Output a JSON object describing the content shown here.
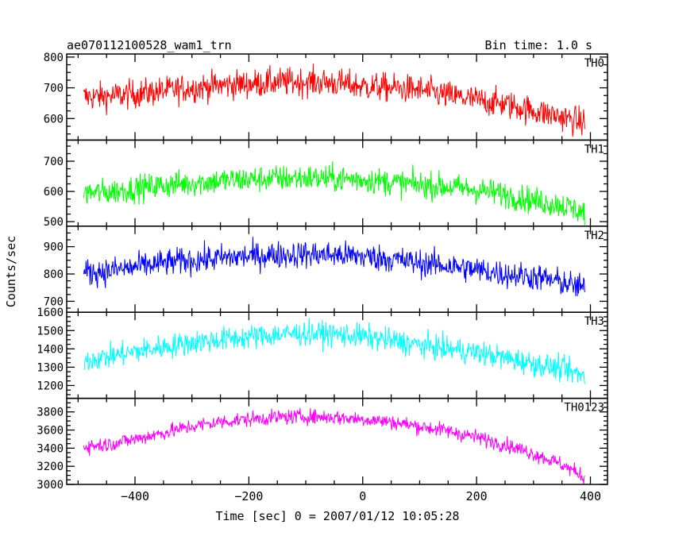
{
  "chart_data": {
    "type": "line",
    "title": "ae070112100528_wam1_trn",
    "subtitle": "Bin time: 1.0 s",
    "xlabel": "Time [sec] 0 = 2007/01/12 10:05:28",
    "ylabel": "Counts/sec",
    "xlim": [
      -520,
      430
    ],
    "xticks": [
      -400,
      -200,
      0,
      200,
      400
    ],
    "panels": [
      {
        "name": "TH0",
        "color": "#ff0000",
        "ylim": [
          530,
          810
        ],
        "yticks": [
          600,
          700,
          800
        ],
        "x": [
          -490,
          -450,
          -400,
          -350,
          -300,
          -250,
          -200,
          -150,
          -100,
          -50,
          0,
          50,
          100,
          150,
          200,
          250,
          300,
          350,
          390
        ],
        "mean": [
          670,
          672,
          680,
          690,
          700,
          708,
          713,
          718,
          720,
          716,
          705,
          700,
          693,
          675,
          660,
          647,
          625,
          605,
          585
        ],
        "spread": 42
      },
      {
        "name": "TH1",
        "color": "#00ff00",
        "ylim": [
          485,
          770
        ],
        "yticks": [
          500,
          600,
          700
        ],
        "x": [
          -490,
          -450,
          -400,
          -350,
          -300,
          -250,
          -200,
          -150,
          -100,
          -50,
          0,
          50,
          100,
          150,
          200,
          250,
          300,
          350,
          390
        ],
        "mean": [
          595,
          597,
          610,
          620,
          628,
          635,
          640,
          643,
          645,
          642,
          640,
          630,
          622,
          615,
          605,
          590,
          570,
          555,
          530
        ],
        "spread": 40
      },
      {
        "name": "TH2",
        "color": "#0000ff",
        "ylim": [
          660,
          975
        ],
        "yticks": [
          700,
          800,
          900
        ],
        "x": [
          -490,
          -450,
          -400,
          -350,
          -300,
          -250,
          -200,
          -150,
          -100,
          -50,
          0,
          50,
          100,
          150,
          200,
          250,
          300,
          350,
          390
        ],
        "mean": [
          805,
          810,
          825,
          840,
          850,
          858,
          865,
          870,
          872,
          870,
          865,
          855,
          840,
          830,
          815,
          800,
          790,
          770,
          745
        ],
        "spread": 45
      },
      {
        "name": "TH3",
        "color": "#00ffff",
        "ylim": [
          1130,
          1600
        ],
        "yticks": [
          1200,
          1300,
          1400,
          1500,
          1600
        ],
        "x": [
          -490,
          -450,
          -400,
          -350,
          -300,
          -250,
          -200,
          -150,
          -100,
          -50,
          0,
          50,
          100,
          150,
          200,
          250,
          300,
          350,
          390
        ],
        "mean": [
          1340,
          1355,
          1385,
          1410,
          1435,
          1450,
          1465,
          1478,
          1485,
          1480,
          1468,
          1445,
          1420,
          1400,
          1380,
          1350,
          1320,
          1290,
          1250
        ],
        "spread": 60
      },
      {
        "name": "TH0123",
        "color": "#ff00ff",
        "ylim": [
          3000,
          3950
        ],
        "yticks": [
          3000,
          3200,
          3400,
          3600,
          3800
        ],
        "x": [
          -490,
          -450,
          -400,
          -350,
          -300,
          -250,
          -200,
          -150,
          -100,
          -50,
          0,
          50,
          100,
          150,
          200,
          250,
          300,
          350,
          390
        ],
        "mean": [
          3420,
          3440,
          3500,
          3570,
          3640,
          3690,
          3720,
          3740,
          3750,
          3740,
          3720,
          3690,
          3640,
          3590,
          3520,
          3440,
          3340,
          3220,
          3080
        ],
        "spread": 75
      }
    ]
  }
}
